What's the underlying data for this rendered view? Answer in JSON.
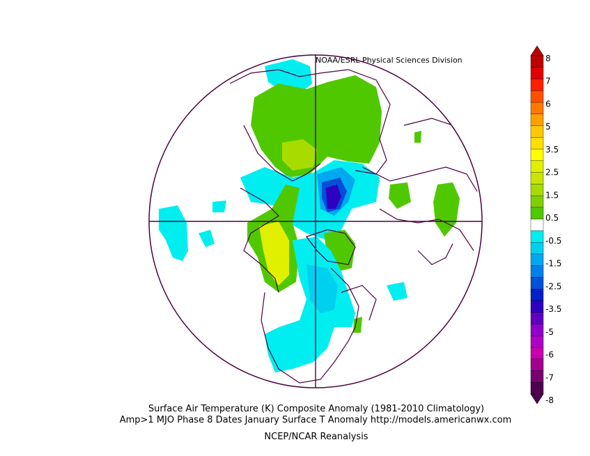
{
  "credit": "NOAA/ESRL Physical Sciences Division",
  "caption": {
    "line1": "Surface Air Temperature (K) Composite Anomaly (1981-2010 Climatology)",
    "line2": "Amp>1 MJO Phase 8 Dates January Surface T Anomaly http://models.americanwx.com",
    "line3": "NCEP/NCAR Reanalysis"
  },
  "colorbar": {
    "labels": [
      "8",
      "7",
      "6",
      "5",
      "3.5",
      "2.5",
      "1.5",
      "0.5",
      "-0.5",
      "-1.5",
      "-2.5",
      "-3.5",
      "-5",
      "-6",
      "-7",
      "-8"
    ],
    "colors": [
      "#c00000",
      "#e00000",
      "#ff2000",
      "#ff5000",
      "#ff7800",
      "#ffa000",
      "#ffc800",
      "#ffe000",
      "#ffff00",
      "#e0f000",
      "#c8e600",
      "#a8dc00",
      "#80d000",
      "#50c800",
      "#ffffff",
      "#00eef0",
      "#00d0f0",
      "#00a8f0",
      "#0080e8",
      "#0050d8",
      "#0020c8",
      "#3000c0",
      "#6000c0",
      "#9000c8",
      "#b000c8",
      "#c800b0",
      "#a00090",
      "#780070",
      "#500050"
    ]
  }
}
